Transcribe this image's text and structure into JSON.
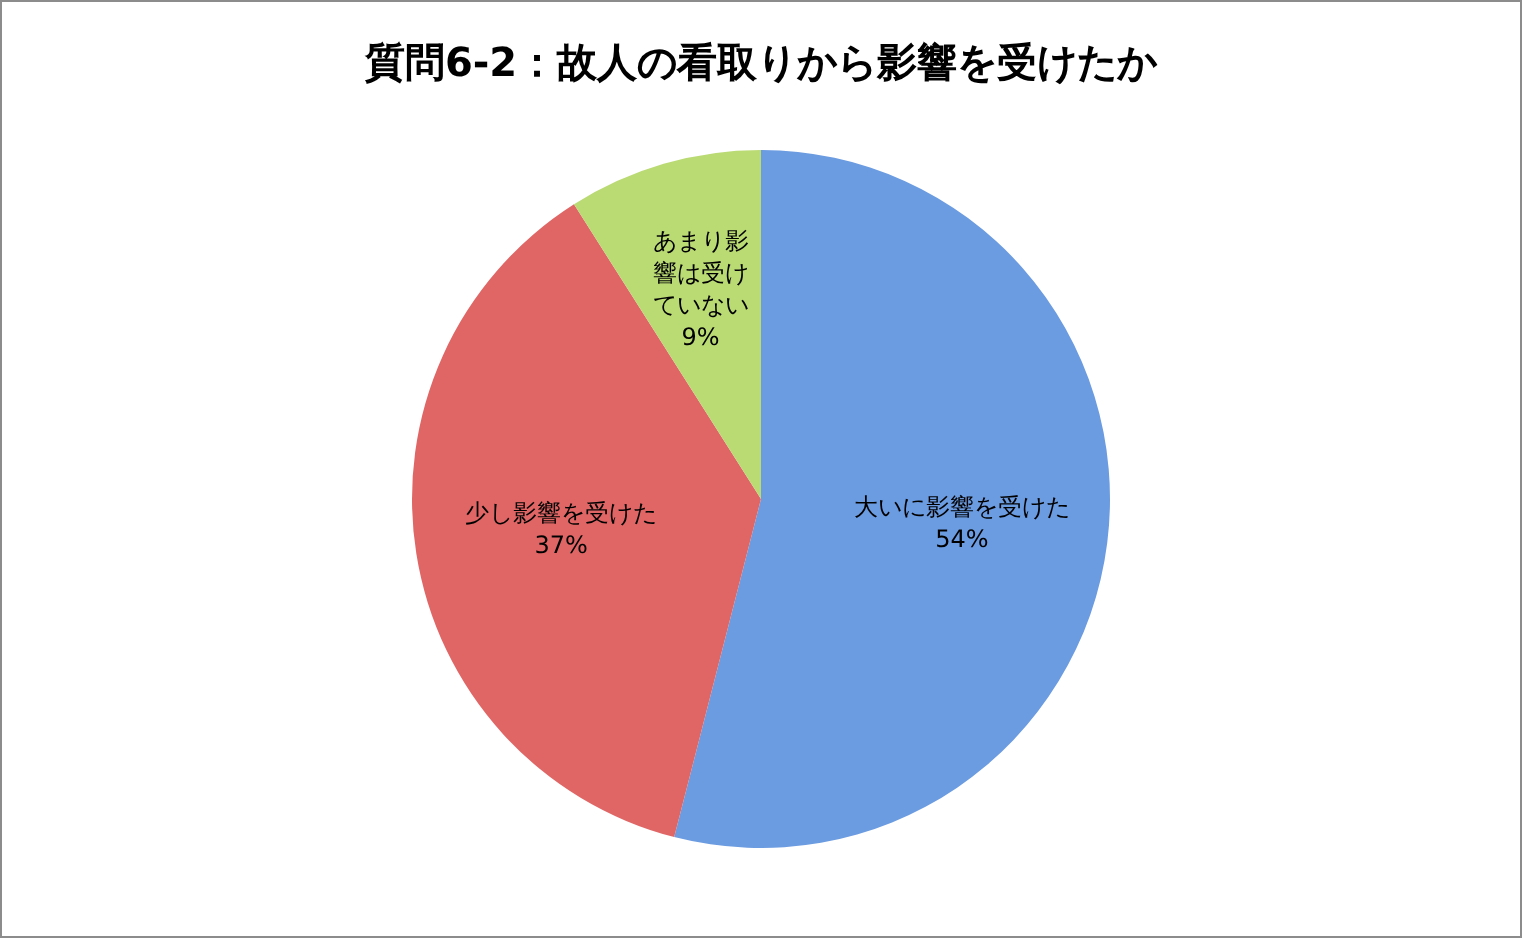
{
  "chart_data": {
    "type": "pie",
    "title": "質問6-2：故人の看取りから影響を受けたか",
    "categories": [
      "大いに影響を受けた",
      "少し影響を受けた",
      "あまり影響は受けていない"
    ],
    "values": [
      54,
      37,
      9
    ],
    "colors": [
      "#6b9be0",
      "#e06666",
      "#bada74"
    ],
    "value_labels": [
      "54%",
      "37%",
      "9%"
    ],
    "legend": false
  }
}
